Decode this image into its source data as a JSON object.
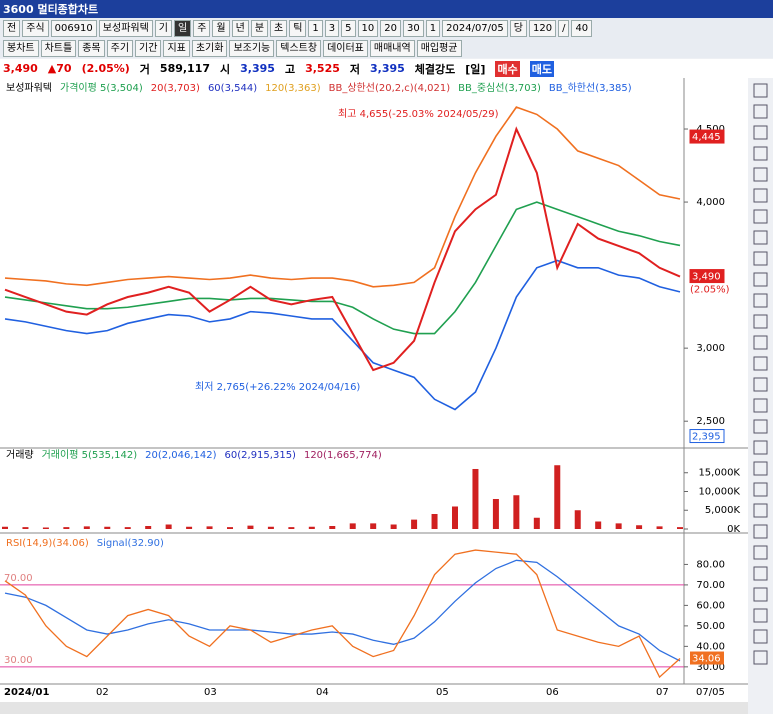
{
  "window": {
    "title": "3600 멀티종합차트"
  },
  "toolbar1": {
    "items": [
      "전",
      "주식",
      "006910",
      "보성파워텍",
      "기",
      "일",
      "주",
      "월",
      "년",
      "분",
      "초",
      "틱",
      "1",
      "3",
      "5",
      "10",
      "20",
      "30",
      "1",
      "2024/07/05",
      "당",
      "120",
      "/",
      "40"
    ]
  },
  "toolbar2": {
    "items": [
      "봉차트",
      "차트틀",
      "종목",
      "주기",
      "기간",
      "지표",
      "초기화",
      "보조기능",
      "텍스트창",
      "데이터표",
      "매매내역",
      "매입평균"
    ]
  },
  "quote": {
    "items": [
      "3,490",
      "▲70",
      "(2.05%)",
      "거",
      "589,117",
      "시",
      "3,395",
      "고",
      "3,525",
      "저",
      "3,395",
      "체결강도",
      "[일]",
      "매수",
      "매도"
    ]
  },
  "price_pane": {
    "legend": [
      "보성파워텍",
      "가격이평 5(3,504)",
      "20(3,703)",
      "60(3,544)",
      "120(3,363)",
      "BB_상한선(20,2,c)(4,021)",
      "BB_중심선(3,703)",
      "BB_하한선(3,385)"
    ],
    "high_note": "최고 4,655(-25.03% 2024/05/29)",
    "low_note": "최저 2,765(+26.22% 2024/04/16)",
    "ylim": [
      2385,
      4815
    ],
    "yticks": [
      {
        "value": 2500,
        "label": "2,500"
      },
      {
        "value": 3000,
        "label": "3,000"
      },
      {
        "value": 4000,
        "label": "4,000"
      },
      {
        "value": 4500,
        "label": "4,500"
      }
    ],
    "price_tags": [
      {
        "value": 4445,
        "label": "4,445"
      },
      {
        "value": 3490,
        "label": "3,490"
      },
      {
        "value": 2395,
        "label": "2,395"
      }
    ],
    "change_tag": "(2.05%)",
    "series": [
      {
        "color": "#f07020",
        "values": [
          3480,
          3470,
          3460,
          3440,
          3430,
          3450,
          3470,
          3480,
          3490,
          3480,
          3470,
          3480,
          3500,
          3480,
          3470,
          3480,
          3480,
          3460,
          3420,
          3430,
          3450,
          3550,
          3900,
          4200,
          4450,
          4650,
          4600,
          4500,
          4350,
          4300,
          4250,
          4150,
          4050,
          4021
        ]
      },
      {
        "color": "#2060e0",
        "values": [
          3200,
          3180,
          3150,
          3120,
          3100,
          3120,
          3170,
          3200,
          3230,
          3220,
          3180,
          3200,
          3250,
          3240,
          3220,
          3200,
          3200,
          3050,
          2900,
          2850,
          2800,
          2650,
          2580,
          2700,
          3000,
          3350,
          3550,
          3600,
          3550,
          3550,
          3500,
          3480,
          3420,
          3385
        ]
      },
      {
        "color": "#20a050",
        "values": [
          3350,
          3330,
          3310,
          3290,
          3270,
          3270,
          3280,
          3300,
          3320,
          3340,
          3340,
          3330,
          3340,
          3340,
          3330,
          3320,
          3320,
          3280,
          3200,
          3130,
          3100,
          3100,
          3250,
          3450,
          3700,
          3950,
          4000,
          3950,
          3900,
          3850,
          3800,
          3770,
          3730,
          3703
        ]
      },
      {
        "color": "#e02020",
        "values": [
          3400,
          3350,
          3300,
          3250,
          3230,
          3300,
          3350,
          3380,
          3420,
          3380,
          3250,
          3330,
          3420,
          3330,
          3300,
          3330,
          3350,
          3100,
          2850,
          2900,
          3050,
          3450,
          3800,
          3950,
          4050,
          4500,
          4200,
          3550,
          3850,
          3750,
          3700,
          3650,
          3550,
          3490
        ]
      }
    ]
  },
  "volume_pane": {
    "legend": [
      "거래량",
      "거래이평 5(535,142)",
      "20(2,046,142)",
      "60(2,915,315)",
      "120(1,665,774)"
    ],
    "ylim": [
      0,
      20263
    ],
    "yticks": [
      {
        "value": 0,
        "label": "0K"
      },
      {
        "value": 5000,
        "label": "5,000K"
      },
      {
        "value": 10000,
        "label": "10,000K"
      },
      {
        "value": 15000,
        "label": "15,000K"
      }
    ],
    "color": "#d02020",
    "values": [
      600,
      500,
      400,
      500,
      700,
      600,
      500,
      800,
      1200,
      600,
      700,
      500,
      900,
      600,
      500,
      600,
      800,
      1500,
      1500,
      1200,
      2500,
      4000,
      6000,
      16000,
      8000,
      9000,
      3000,
      17000,
      5000,
      2000,
      1500,
      1000,
      700,
      500
    ]
  },
  "rsi_pane": {
    "legend": [
      "RSI(14,9)(34.06)",
      "Signal(32.90)"
    ],
    "ylim": [
      22.6,
      92.9
    ],
    "yticks": [
      {
        "value": 30,
        "label": "30.00"
      },
      {
        "value": 40,
        "label": "40.00"
      },
      {
        "value": 50,
        "label": "50.00"
      },
      {
        "value": 60,
        "label": "60.00"
      },
      {
        "value": 70,
        "label": "70.00"
      },
      {
        "value": 80,
        "label": "80.00"
      }
    ],
    "levels": [
      {
        "value": 70,
        "label": "70.00"
      },
      {
        "value": 30,
        "label": "30.00"
      }
    ],
    "rsi_color": "#f07020",
    "signal_color": "#3070e0",
    "rsi": [
      72,
      65,
      50,
      40,
      35,
      45,
      55,
      58,
      55,
      45,
      40,
      50,
      48,
      42,
      45,
      48,
      50,
      40,
      35,
      38,
      55,
      75,
      85,
      87,
      86,
      85,
      75,
      48,
      45,
      42,
      40,
      45,
      25,
      34.06
    ],
    "signal": [
      66,
      64,
      60,
      54,
      48,
      46,
      48,
      51,
      53,
      51,
      48,
      48,
      48,
      47,
      46,
      46,
      47,
      46,
      43,
      41,
      44,
      52,
      62,
      71,
      78,
      82,
      81,
      74,
      66,
      58,
      50,
      46,
      38,
      32.9
    ],
    "tag": {
      "value": 34.06,
      "label": "34.06"
    }
  },
  "x_axis": {
    "labels": [
      "2024/01",
      "02",
      "03",
      "04",
      "05",
      "06",
      "07",
      "07/05"
    ]
  }
}
